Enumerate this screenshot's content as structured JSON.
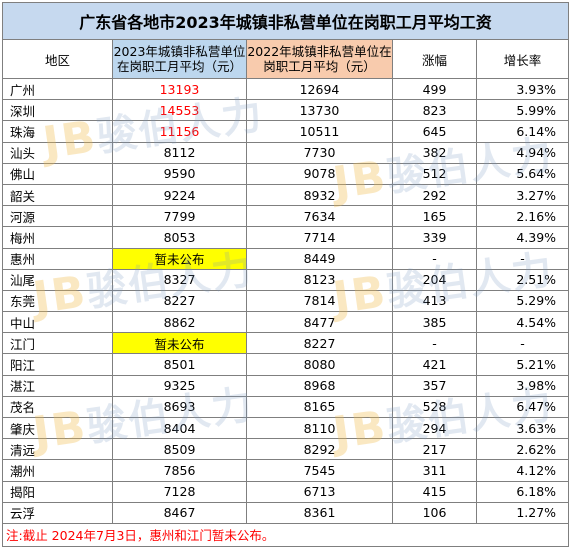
{
  "title": "广东省各地市2023年城镇非私营单位在岗职工月平均工资",
  "headers": {
    "region": "地区",
    "wage_2023": "2023年城镇非私营单位在岗职工月平均（元）",
    "wage_2022": "2022年城镇非私营单位在岗职工月平均（元）",
    "increase": "涨幅",
    "growth": "增长率"
  },
  "rows": [
    {
      "region": "广州",
      "wage_2023": "13193",
      "wage_2022": "12694",
      "increase": "499",
      "growth": "3.93%",
      "highlight": "red"
    },
    {
      "region": "深圳",
      "wage_2023": "14553",
      "wage_2022": "13730",
      "increase": "823",
      "growth": "5.99%",
      "highlight": "red"
    },
    {
      "region": "珠海",
      "wage_2023": "11156",
      "wage_2022": "10511",
      "increase": "645",
      "growth": "6.14%",
      "highlight": "red"
    },
    {
      "region": "汕头",
      "wage_2023": "8112",
      "wage_2022": "7730",
      "increase": "382",
      "growth": "4.94%",
      "highlight": ""
    },
    {
      "region": "佛山",
      "wage_2023": "9590",
      "wage_2022": "9078",
      "increase": "512",
      "growth": "5.64%",
      "highlight": ""
    },
    {
      "region": "韶关",
      "wage_2023": "9224",
      "wage_2022": "8932",
      "increase": "292",
      "growth": "3.27%",
      "highlight": ""
    },
    {
      "region": "河源",
      "wage_2023": "7799",
      "wage_2022": "7634",
      "increase": "165",
      "growth": "2.16%",
      "highlight": ""
    },
    {
      "region": "梅州",
      "wage_2023": "8053",
      "wage_2022": "7714",
      "increase": "339",
      "growth": "4.39%",
      "highlight": ""
    },
    {
      "region": "惠州",
      "wage_2023": "暂未公布",
      "wage_2022": "8449",
      "increase": "-",
      "growth": "-",
      "highlight": "yellow"
    },
    {
      "region": "汕尾",
      "wage_2023": "8327",
      "wage_2022": "8123",
      "increase": "204",
      "growth": "2.51%",
      "highlight": ""
    },
    {
      "region": "东莞",
      "wage_2023": "8227",
      "wage_2022": "7814",
      "increase": "413",
      "growth": "5.29%",
      "highlight": ""
    },
    {
      "region": "中山",
      "wage_2023": "8862",
      "wage_2022": "8477",
      "increase": "385",
      "growth": "4.54%",
      "highlight": ""
    },
    {
      "region": "江门",
      "wage_2023": "暂未公布",
      "wage_2022": "8227",
      "increase": "-",
      "growth": "-",
      "highlight": "yellow"
    },
    {
      "region": "阳江",
      "wage_2023": "8501",
      "wage_2022": "8080",
      "increase": "421",
      "growth": "5.21%",
      "highlight": ""
    },
    {
      "region": "湛江",
      "wage_2023": "9325",
      "wage_2022": "8968",
      "increase": "357",
      "growth": "3.98%",
      "highlight": ""
    },
    {
      "region": "茂名",
      "wage_2023": "8693",
      "wage_2022": "8165",
      "increase": "528",
      "growth": "6.47%",
      "highlight": ""
    },
    {
      "region": "肇庆",
      "wage_2023": "8404",
      "wage_2022": "8110",
      "increase": "294",
      "growth": "3.63%",
      "highlight": ""
    },
    {
      "region": "清远",
      "wage_2023": "8509",
      "wage_2022": "8292",
      "increase": "217",
      "growth": "2.62%",
      "highlight": ""
    },
    {
      "region": "潮州",
      "wage_2023": "7856",
      "wage_2022": "7545",
      "increase": "311",
      "growth": "4.12%",
      "highlight": ""
    },
    {
      "region": "揭阳",
      "wage_2023": "7128",
      "wage_2022": "6713",
      "increase": "415",
      "growth": "6.18%",
      "highlight": ""
    },
    {
      "region": "云浮",
      "wage_2023": "8467",
      "wage_2022": "8361",
      "increase": "106",
      "growth": "1.27%",
      "highlight": ""
    }
  ],
  "note": "注:截止 2024年7月3日，惠州和江门暂未公布。",
  "watermark": {
    "logo": "JB",
    "text": "骏伯人力"
  },
  "colors": {
    "title_bg": "#c6d9ef",
    "header_2023_bg": "#bdd7ee",
    "header_2022_bg": "#f8cbad",
    "top3_text": "#ff0000",
    "unpublished_bg": "#ffff00",
    "note_text": "#ff0000"
  }
}
